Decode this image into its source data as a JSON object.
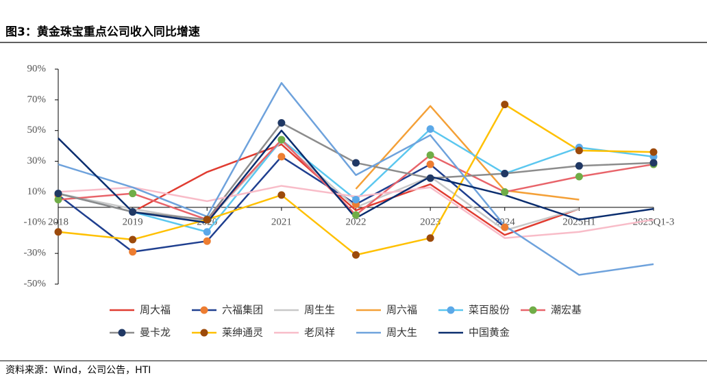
{
  "chart_data": {
    "type": "line",
    "title": "图3：黄金珠宝重点公司收入同比增速",
    "source": "资料来源：Wind，公司公告，HTI",
    "categories": [
      "2018",
      "2019",
      "2020",
      "2021",
      "2022",
      "2023",
      "2024",
      "2025H1",
      "2025Q1-3"
    ],
    "ylim": [
      -50,
      90
    ],
    "yticks": [
      {
        "value": -50,
        "label": "-50%"
      },
      {
        "value": -30,
        "label": "-30%"
      },
      {
        "value": -10,
        "label": "-10%"
      },
      {
        "value": 10,
        "label": "10%"
      },
      {
        "value": 30,
        "label": "30%"
      },
      {
        "value": 50,
        "label": "50%"
      },
      {
        "value": 70,
        "label": "70%"
      },
      {
        "value": 90,
        "label": "90%"
      }
    ],
    "legend": "bottom",
    "series": [
      {
        "name": "周大福",
        "color": "#e03c31",
        "values": [
          9,
          -3,
          23,
          41,
          -2,
          15,
          -18,
          -1,
          null
        ]
      },
      {
        "name": "六福集团",
        "color": "#1f3f8f",
        "marker_color": "#ed7d31",
        "values": [
          8,
          -29,
          -22,
          33,
          2,
          28,
          -13,
          null,
          null
        ]
      },
      {
        "name": "周生生",
        "color": "#c8c8c8",
        "values": [
          9,
          -1,
          -9,
          43,
          0,
          20,
          -15,
          -1,
          null
        ]
      },
      {
        "name": "周六福",
        "color": "#f4a037",
        "values": [
          null,
          null,
          null,
          null,
          12,
          66,
          11,
          5,
          null
        ]
      },
      {
        "name": "菜百股份",
        "color": "#5bc7ef",
        "marker_color": "#5ba8e8",
        "values": [
          9,
          -3,
          -16,
          44,
          5,
          51,
          22,
          39,
          33
        ]
      },
      {
        "name": "潮宏基",
        "color": "#e8646a",
        "marker_color": "#70ad47",
        "values": [
          5,
          9,
          -8,
          44,
          -5,
          34,
          10,
          20,
          28
        ]
      },
      {
        "name": "曼卡龙",
        "color": "#8c8c8c",
        "marker_color": "#203864",
        "values": [
          9,
          -3,
          -8,
          55,
          29,
          19,
          22,
          27,
          29
        ]
      },
      {
        "name": "莱绅通灵",
        "color": "#ffc000",
        "marker_color": "#9c4a0b",
        "values": [
          -16,
          -21,
          -8,
          8,
          -31,
          -20,
          67,
          37,
          36
        ]
      },
      {
        "name": "老凤祥",
        "color": "#f8bcc8",
        "values": [
          10,
          13,
          4,
          14,
          7,
          13,
          -20,
          -16,
          -8
        ]
      },
      {
        "name": "周大生",
        "color": "#6ea2dc",
        "values": [
          28,
          13,
          -6,
          81,
          21,
          47,
          -12,
          -44,
          -37
        ]
      },
      {
        "name": "中国黄金",
        "color": "#0a2d6e",
        "values": [
          45,
          -3,
          -10,
          50,
          -7,
          20,
          8,
          -8,
          -1
        ]
      }
    ]
  }
}
